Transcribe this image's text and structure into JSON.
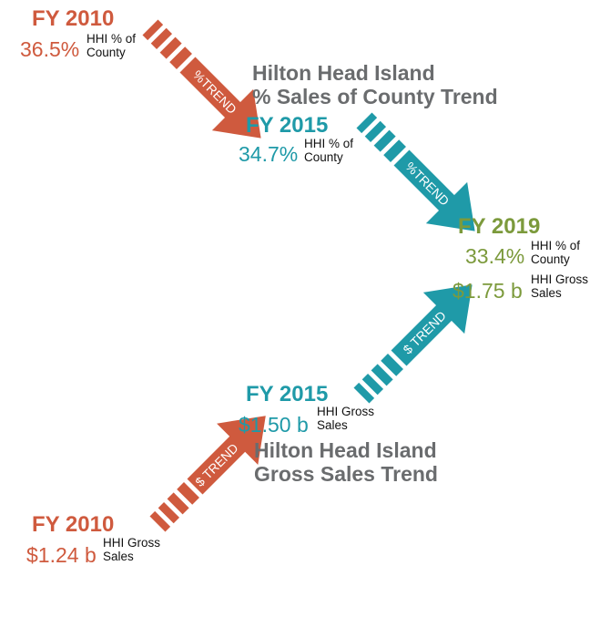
{
  "colors": {
    "orange": "#cf5a3e",
    "teal": "#1f9aa8",
    "olive": "#7c9a3c",
    "gray": "#6a6c6e"
  },
  "pct_chart": {
    "title_line1": "Hilton Head Island",
    "title_line2": "% Sales of County Trend",
    "points": [
      {
        "year": "FY 2010",
        "value": "36.5%",
        "label_line1": "HHI % of",
        "label_line2": "County"
      },
      {
        "year": "FY 2015",
        "value": "34.7%",
        "label_line1": "HHI % of",
        "label_line2": "County"
      },
      {
        "year": "FY 2019",
        "value": "33.4%",
        "label_line1": "HHI % of",
        "label_line2": "County"
      }
    ],
    "arrow_label": "%TREND"
  },
  "sales_chart": {
    "title_line1": "Hilton Head Island",
    "title_line2": "Gross Sales Trend",
    "points": [
      {
        "year": "FY 2010",
        "value": "$1.24 b",
        "label_line1": "HHI Gross",
        "label_line2": "Sales"
      },
      {
        "year": "FY 2015",
        "value": "$1.50 b",
        "label_line1": "HHI Gross",
        "label_line2": "Sales"
      },
      {
        "year": "FY 2019",
        "value": "$1.75 b",
        "label_line1": "HHI Gross",
        "label_line2": "Sales"
      }
    ],
    "arrow_label": "$ TREND"
  }
}
